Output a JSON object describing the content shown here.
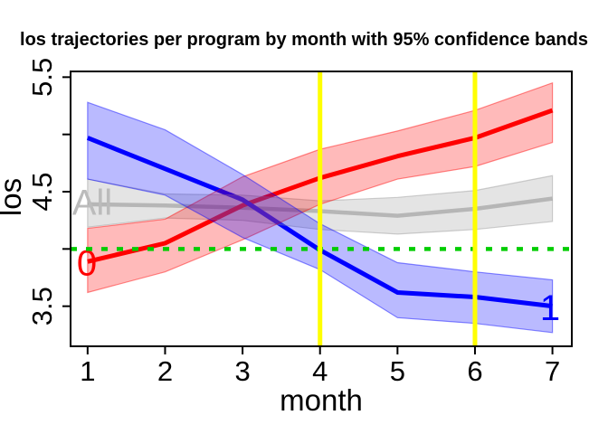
{
  "figure": {
    "background": "#FFFFFF",
    "frame_color": "#000000"
  },
  "chart_data": {
    "type": "line",
    "title": "los trajectories per program by month with 95% confidence bands",
    "xlabel": "month",
    "ylabel": "los",
    "x": [
      1,
      2,
      3,
      4,
      5,
      6,
      7
    ],
    "xlim": [
      0.78,
      7.25
    ],
    "ylim": [
      3.15,
      5.55
    ],
    "x_ticks": [
      1,
      2,
      3,
      4,
      5,
      6,
      7
    ],
    "y_ticks": [
      3.5,
      4.0,
      4.5,
      5.0,
      5.5
    ],
    "y_tick_labels": [
      "3.5",
      "",
      "4.5",
      "",
      "5.5"
    ],
    "grid": false,
    "legend": "labels drawn on curves",
    "series": [
      {
        "name": "All",
        "color": "#BBBBBB",
        "band_color": "rgba(170,170,170,0.32)",
        "band_edge_color": "rgba(150,150,150,0.45)",
        "line_width": 4.5,
        "values": [
          4.39,
          4.38,
          4.36,
          4.33,
          4.29,
          4.35,
          4.44
        ],
        "lower": [
          4.19,
          4.27,
          4.25,
          4.17,
          4.13,
          4.17,
          4.24
        ],
        "upper": [
          4.61,
          4.48,
          4.47,
          4.42,
          4.45,
          4.51,
          4.64
        ],
        "label": {
          "text": "All",
          "x": 1.06,
          "y": 4.41
        }
      },
      {
        "name": "0",
        "color": "#FF0000",
        "band_color": "rgba(255,0,0,0.27)",
        "band_edge_color": "rgba(255,0,0,0.45)",
        "line_width": 5,
        "values": [
          3.89,
          4.05,
          4.38,
          4.62,
          4.81,
          4.97,
          5.21
        ],
        "lower": [
          3.62,
          3.8,
          4.08,
          4.39,
          4.61,
          4.72,
          4.93
        ],
        "upper": [
          4.18,
          4.26,
          4.63,
          4.87,
          5.03,
          5.21,
          5.45
        ],
        "label": {
          "text": "0",
          "x": 0.99,
          "y": 3.88
        }
      },
      {
        "name": "1",
        "color": "#0000FF",
        "band_color": "rgba(0,0,255,0.27)",
        "band_edge_color": "rgba(0,0,255,0.45)",
        "line_width": 5,
        "values": [
          4.97,
          4.7,
          4.43,
          3.99,
          3.62,
          3.58,
          3.5
        ],
        "lower": [
          4.61,
          4.47,
          4.1,
          3.82,
          3.4,
          3.35,
          3.27
        ],
        "upper": [
          5.28,
          5.04,
          4.65,
          4.22,
          3.88,
          3.8,
          3.73
        ],
        "label": {
          "text": "1",
          "x": 6.97,
          "y": 3.49
        }
      }
    ],
    "reference_lines": [
      {
        "orientation": "h",
        "value": 4.0,
        "color": "#00CD00",
        "style": "dashed",
        "width": 4.5
      },
      {
        "orientation": "v",
        "value": 4,
        "color": "#FFFF00",
        "style": "solid",
        "width": 5
      },
      {
        "orientation": "v",
        "value": 6,
        "color": "#FFFF00",
        "style": "solid",
        "width": 5
      }
    ]
  }
}
